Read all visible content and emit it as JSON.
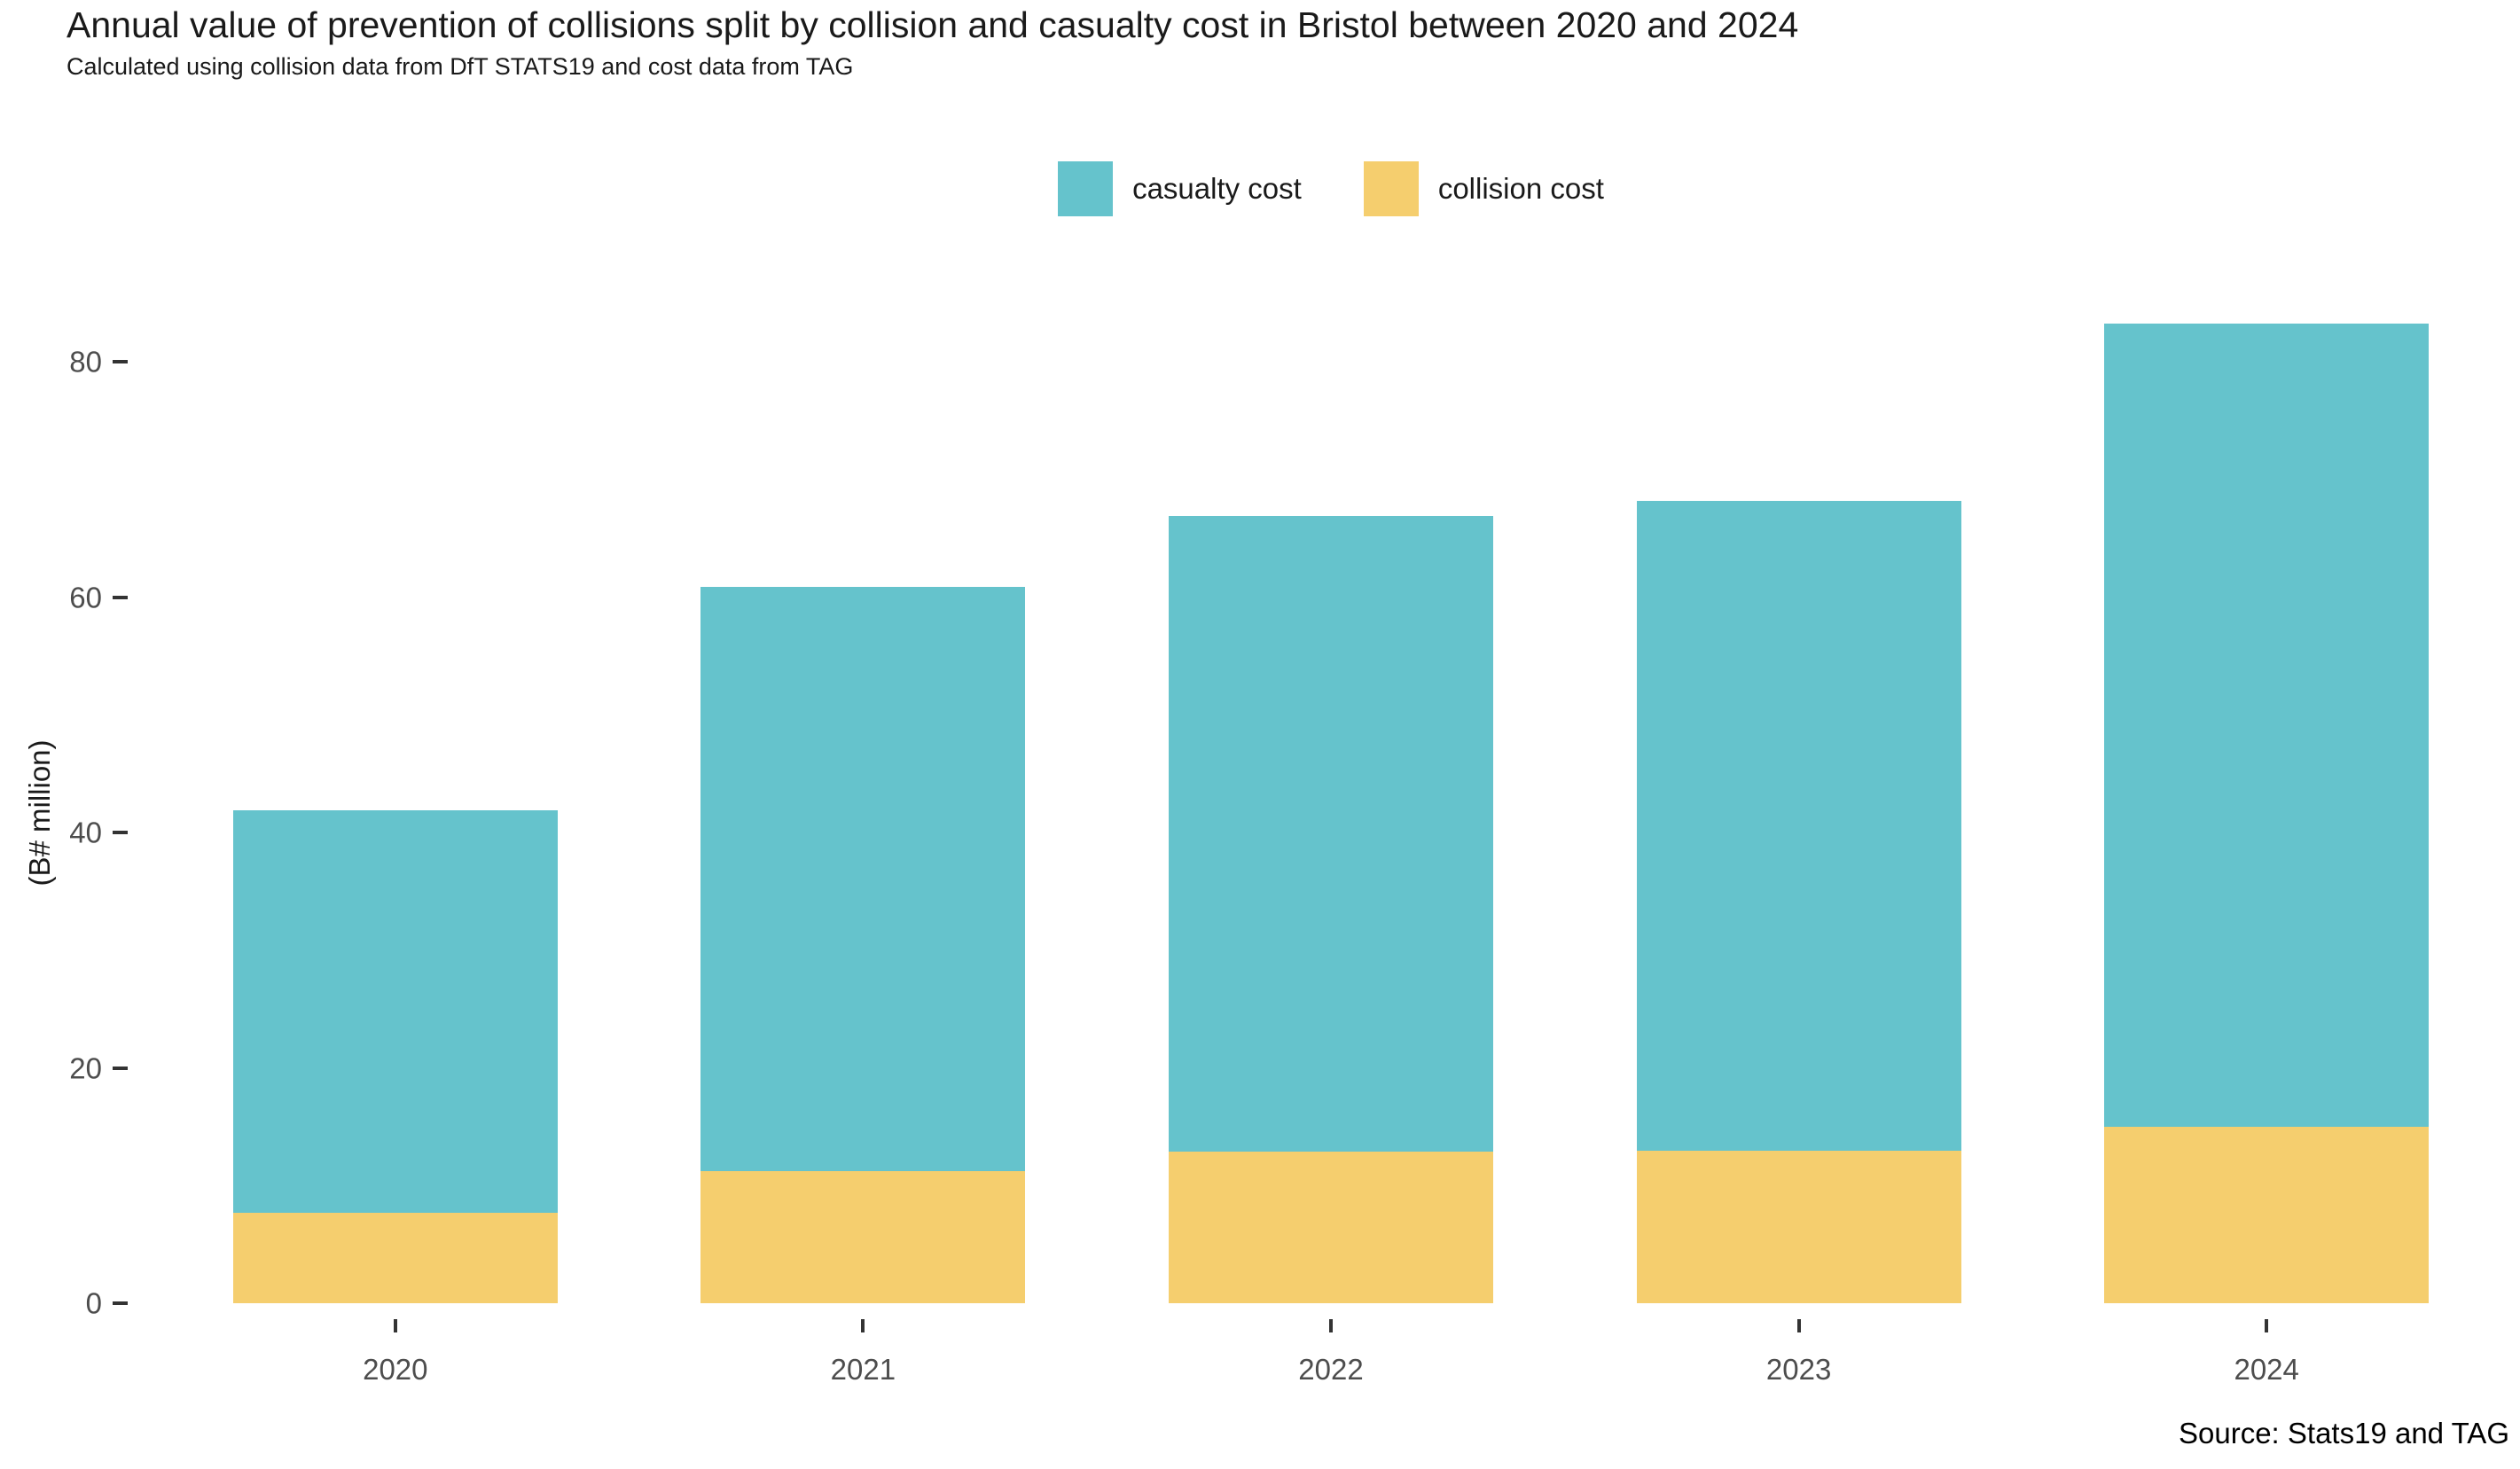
{
  "title": "Annual value of prevention of collisions split by collision and casualty cost in Bristol between 2020 and 2024",
  "subtitle": "Calculated using collision data from DfT STATS19 and cost data from TAG",
  "source": "Source: Stats19 and TAG",
  "colors": {
    "casualty": "#65C3CC",
    "collision": "#F5CE6E",
    "tick_label": "#4d4d4d",
    "tick_mark": "#333333",
    "text": "#1a1a1a"
  },
  "legend": [
    {
      "label": "casualty cost",
      "color": "#65C3CC"
    },
    {
      "label": "collision cost",
      "color": "#F5CE6E"
    }
  ],
  "chart_data": {
    "type": "bar",
    "stacked": true,
    "title": "Annual value of prevention of collisions split by collision and casualty cost in Bristol between 2020 and 2024",
    "subtitle": "Calculated using collision data from DfT STATS19 and cost data from TAG",
    "xlabel": "",
    "ylabel": "(B# million)",
    "categories": [
      "2020",
      "2021",
      "2022",
      "2023",
      "2024"
    ],
    "series": [
      {
        "name": "collision cost",
        "color": "#F5CE6E",
        "values": [
          7.7,
          11.2,
          12.9,
          13.0,
          15.0
        ]
      },
      {
        "name": "casualty cost",
        "color": "#65C3CC",
        "values": [
          34.2,
          49.7,
          54.0,
          55.2,
          68.3
        ]
      }
    ],
    "totals": [
      41.9,
      60.9,
      66.9,
      68.2,
      83.3
    ],
    "yticks": [
      0,
      20,
      40,
      60,
      80
    ],
    "ylim": [
      0,
      89
    ],
    "grid": false,
    "legend_position": "top-center",
    "background": "#ffffff"
  }
}
